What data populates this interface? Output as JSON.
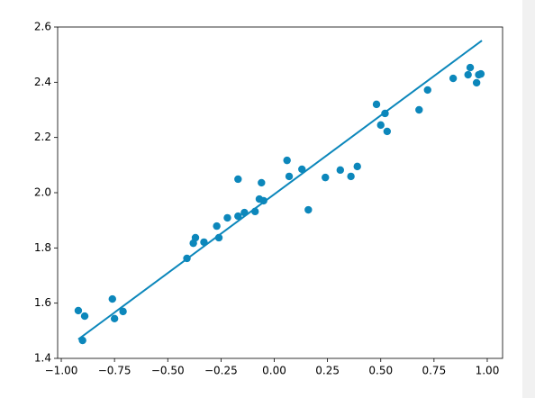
{
  "chart_data": {
    "type": "scatter",
    "xlim": [
      -1.017,
      1.072
    ],
    "ylim": [
      1.4,
      2.6
    ],
    "xticks": [
      {
        "value": -1,
        "label": "−1.00"
      },
      {
        "value": -0.75,
        "label": "−0.75"
      },
      {
        "value": -0.5,
        "label": "−0.50"
      },
      {
        "value": -0.25,
        "label": "−0.25"
      },
      {
        "value": 0,
        "label": "0.00"
      },
      {
        "value": 0.25,
        "label": "0.25"
      },
      {
        "value": 0.5,
        "label": "0.50"
      },
      {
        "value": 0.75,
        "label": "0.75"
      },
      {
        "value": 1,
        "label": "1.00"
      }
    ],
    "yticks": [
      1.4,
      1.6,
      1.8,
      {
        "value": 2,
        "label": "2.0"
      },
      2.2,
      2.4,
      2.6
    ],
    "series": [
      {
        "type": "scatter",
        "color": "#0c87bb",
        "x": [
          -0.92,
          -0.89,
          -0.9,
          -0.76,
          -0.75,
          -0.71,
          -0.41,
          -0.38,
          -0.37,
          -0.33,
          -0.27,
          -0.26,
          -0.22,
          -0.17,
          -0.17,
          -0.14,
          -0.09,
          -0.07,
          -0.06,
          -0.05,
          0.06,
          0.07,
          0.13,
          0.16,
          0.24,
          0.31,
          0.36,
          0.39,
          0.48,
          0.5,
          0.52,
          0.53,
          0.68,
          0.72,
          0.84,
          0.91,
          0.92,
          0.95,
          0.96,
          0.97
        ],
        "values": [
          1.573,
          1.553,
          1.465,
          1.615,
          1.544,
          1.57,
          1.762,
          1.817,
          1.837,
          1.821,
          1.879,
          1.837,
          1.909,
          2.049,
          1.915,
          1.928,
          1.932,
          1.977,
          2.036,
          1.971,
          2.117,
          2.059,
          2.085,
          1.938,
          2.055,
          2.082,
          2.059,
          2.095,
          2.32,
          2.245,
          2.287,
          2.222,
          2.3,
          2.372,
          2.414,
          2.427,
          2.453,
          2.398,
          2.427,
          2.43
        ]
      },
      {
        "type": "line",
        "color": "#0c87bb",
        "x": [
          -0.92,
          0.975
        ],
        "values": [
          1.469,
          2.551
        ]
      }
    ]
  }
}
